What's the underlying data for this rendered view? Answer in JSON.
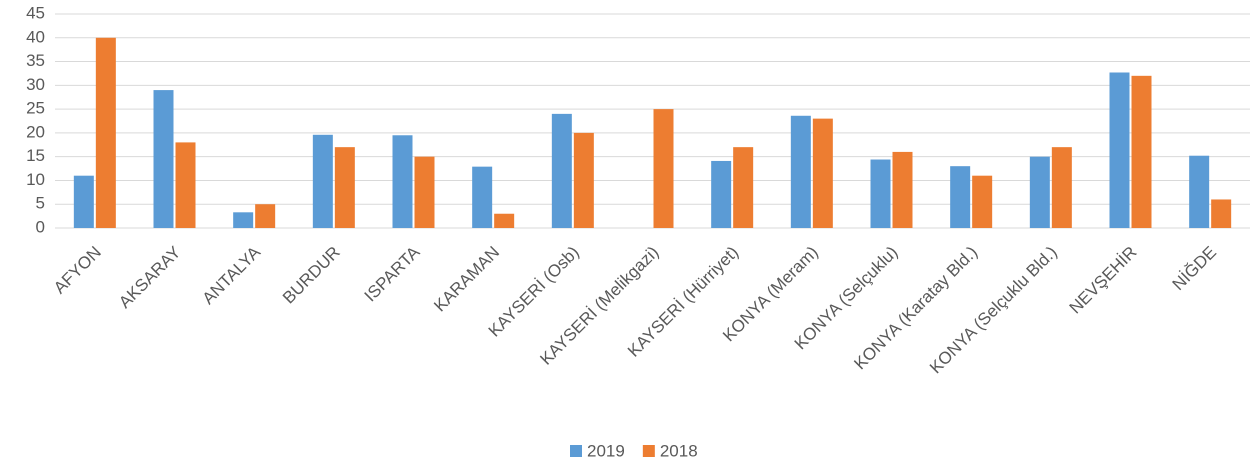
{
  "chart_data": {
    "type": "bar",
    "categories": [
      "AFYON",
      "AKSARAY",
      "ANTALYA",
      "BURDUR",
      "ISPARTA",
      "KARAMAN",
      "KAYSERİ (Osb)",
      "KAYSERİ (Melikgazi)",
      "KAYSERİ (Hürriyet)",
      "KONYA (Meram)",
      "KONYA (Selçuklu)",
      "KONYA (Karatay Bld.)",
      "KONYA (Selçuklu Bld.)",
      "NEVŞEHİR",
      "NİĞDE"
    ],
    "series": [
      {
        "name": "2019",
        "color": "#5b9bd5",
        "values": [
          11,
          29,
          3.3,
          19.6,
          19.5,
          12.9,
          24,
          null,
          14.1,
          23.6,
          14.4,
          13,
          15,
          32.7,
          15.2
        ]
      },
      {
        "name": "2018",
        "color": "#ed7d31",
        "values": [
          40,
          18,
          5,
          17,
          15,
          3,
          20,
          25,
          17,
          23,
          16,
          11,
          17,
          32,
          6
        ]
      }
    ],
    "ylim": [
      0,
      45
    ],
    "yticks": [
      0,
      5,
      10,
      15,
      20,
      25,
      30,
      35,
      40,
      45
    ],
    "grid": true,
    "legend": "bottom"
  }
}
